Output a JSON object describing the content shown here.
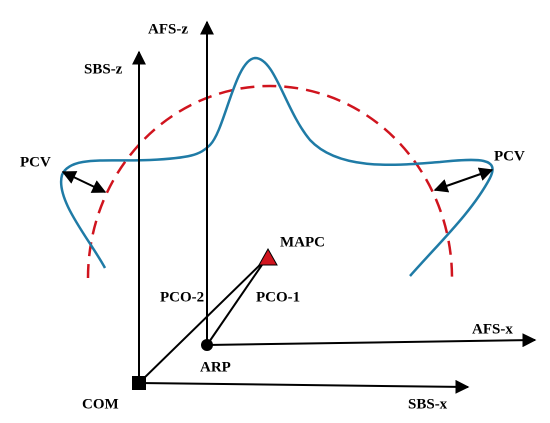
{
  "labels": {
    "sbs_z": "SBS-z",
    "afs_z": "AFS-z",
    "pcv_left": "PCV",
    "pcv_right": "PCV",
    "mapc": "MAPC",
    "pco_2": "PCO-2",
    "pco_1": "PCO-1",
    "afs_x": "AFS-x",
    "arp": "ARP",
    "com": "COM",
    "sbs_x": "SBS-x"
  }
}
